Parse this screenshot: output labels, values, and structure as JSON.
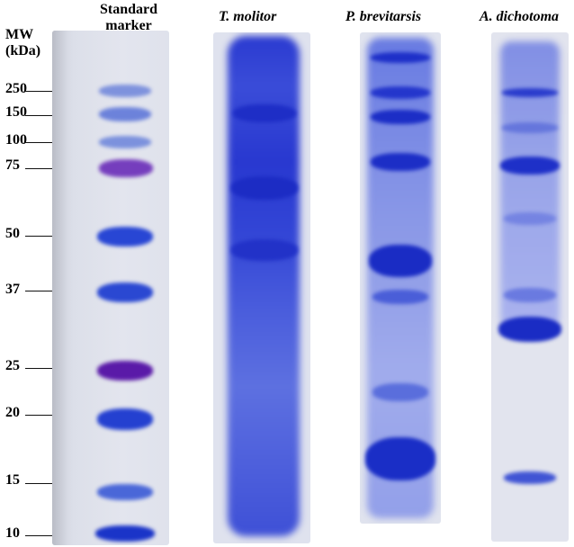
{
  "header": {
    "standard": "Standard\nmarker",
    "standard_line1": "Standard",
    "standard_line2": "marker",
    "mw_line1": "MW",
    "mw_line2": "(kDa)",
    "lanes": [
      "T. molitor",
      "P. brevitarsis",
      "A. dichotoma"
    ]
  },
  "markers": [
    "250",
    "150",
    "100",
    "75",
    "50",
    "37",
    "25",
    "20",
    "15",
    "10"
  ],
  "colors": {
    "gel_background": "#dfe1ec",
    "band_blue": "#2c45d4",
    "band_dark": "#1b2fc8",
    "band_purple": "#6a2cb8",
    "band_magenta": "#6a1aa8"
  }
}
